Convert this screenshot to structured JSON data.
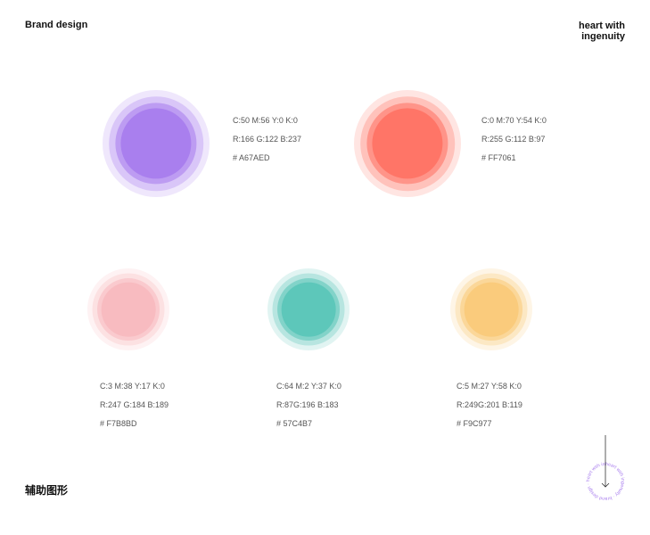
{
  "header": {
    "brand": "Brand design",
    "tagline_line1": "heart with",
    "tagline_line2": "ingenuity"
  },
  "footer": {
    "label": "辅助图形"
  },
  "colors": [
    {
      "name": "purple",
      "hex_value": "#A67AED",
      "cmyk": "C:50 M:56 Y:0 K:0",
      "rgb": "R:166 G:122 B:237",
      "hex": "# A67AED"
    },
    {
      "name": "coral",
      "hex_value": "#FF7061",
      "cmyk": "C:0 M:70 Y:54 K:0",
      "rgb": "R:255 G:112 B:97",
      "hex": "# FF7061"
    },
    {
      "name": "pink",
      "hex_value": "#F7B8BD",
      "cmyk": "C:3 M:38 Y:17 K:0",
      "rgb": "R:247 G:184 B:189",
      "hex": "# F7B8BD"
    },
    {
      "name": "teal",
      "hex_value": "#57C4B7",
      "cmyk": "C:64 M:2 Y:37 K:0",
      "rgb": "R:87G:196 B:183",
      "hex": "# 57C4B7"
    },
    {
      "name": "yellow",
      "hex_value": "#F9C977",
      "cmyk": "C:5 M:27 Y:58 K:0",
      "rgb": "R:249G:201 B:119",
      "hex": "# F9C977"
    }
  ],
  "badge": {
    "circular_text": "heart with ingenuity · brand design · ",
    "arrow_icon": "arrow-down-icon",
    "accent": "#A67AED"
  }
}
